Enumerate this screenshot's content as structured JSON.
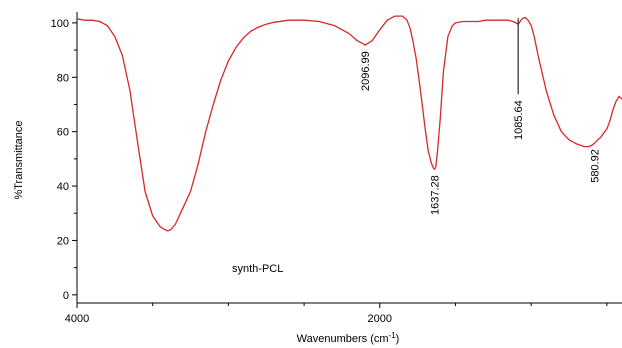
{
  "chart_data": {
    "type": "line",
    "xlabel": "Wavenumbers (cm",
    "xlabel_sup": "-1",
    "xlabel_tail": ")",
    "ylabel": "%Transmittance",
    "xlim": [
      4000,
      400
    ],
    "ylim": [
      -3,
      104
    ],
    "x_ticks": [
      4000,
      2000
    ],
    "y_ticks": [
      0,
      20,
      40,
      60,
      80,
      100
    ],
    "grid": false,
    "annotation": "synth-PCL",
    "color": "#d42a2a",
    "series": [
      {
        "x": [
          4000,
          3950,
          3900,
          3850,
          3800,
          3750,
          3700,
          3650,
          3600,
          3550,
          3500,
          3450,
          3420,
          3400,
          3380,
          3350,
          3300,
          3250,
          3200,
          3150,
          3100,
          3050,
          3000,
          2950,
          2900,
          2850,
          2800,
          2750,
          2700,
          2600,
          2500,
          2400,
          2300,
          2200,
          2150,
          2100,
          2097,
          2050,
          2000,
          1950,
          1900,
          1850,
          1820,
          1800,
          1780,
          1760,
          1740,
          1720,
          1700,
          1680,
          1660,
          1645,
          1637,
          1630,
          1620,
          1600,
          1580,
          1550,
          1520,
          1500,
          1450,
          1400,
          1350,
          1300,
          1250,
          1200,
          1150,
          1120,
          1100,
          1086,
          1060,
          1040,
          1020,
          1000,
          980,
          950,
          900,
          850,
          800,
          750,
          700,
          650,
          620,
          600,
          581,
          560,
          540,
          520,
          500,
          480,
          460,
          440,
          420,
          400
        ],
        "y": [
          101.5,
          101,
          101,
          100.5,
          99,
          95,
          88,
          75,
          56,
          38,
          29,
          25,
          24,
          23.5,
          24,
          26,
          32,
          38,
          48,
          60,
          70,
          79,
          86,
          91,
          94.5,
          97,
          98.5,
          99.5,
          100.2,
          101,
          101,
          100.5,
          99,
          96,
          93.5,
          92,
          91.8,
          93.5,
          97.5,
          101,
          102.5,
          102.5,
          101,
          98,
          93,
          87,
          79,
          70,
          61,
          53,
          48.5,
          46.5,
          46.2,
          47,
          52,
          65,
          82,
          95,
          99,
          100,
          100.5,
          100.5,
          100.5,
          101,
          101,
          101,
          101,
          100.5,
          100,
          99.5,
          101.5,
          102,
          101,
          99,
          95,
          87,
          75,
          66,
          60,
          57,
          55.5,
          54.5,
          54.5,
          55,
          55.8,
          57,
          58,
          59.5,
          61,
          64,
          68,
          71,
          73,
          72
        ]
      }
    ],
    "peak_labels": [
      {
        "text": "2096.99",
        "x": 2097,
        "y": 91.8
      },
      {
        "text": "1637.28",
        "x": 1637,
        "y": 46.2
      },
      {
        "text": "1085.64",
        "x": 1086,
        "y": 99.5
      },
      {
        "text": "580.92",
        "x": 581,
        "y": 55.8
      }
    ]
  }
}
